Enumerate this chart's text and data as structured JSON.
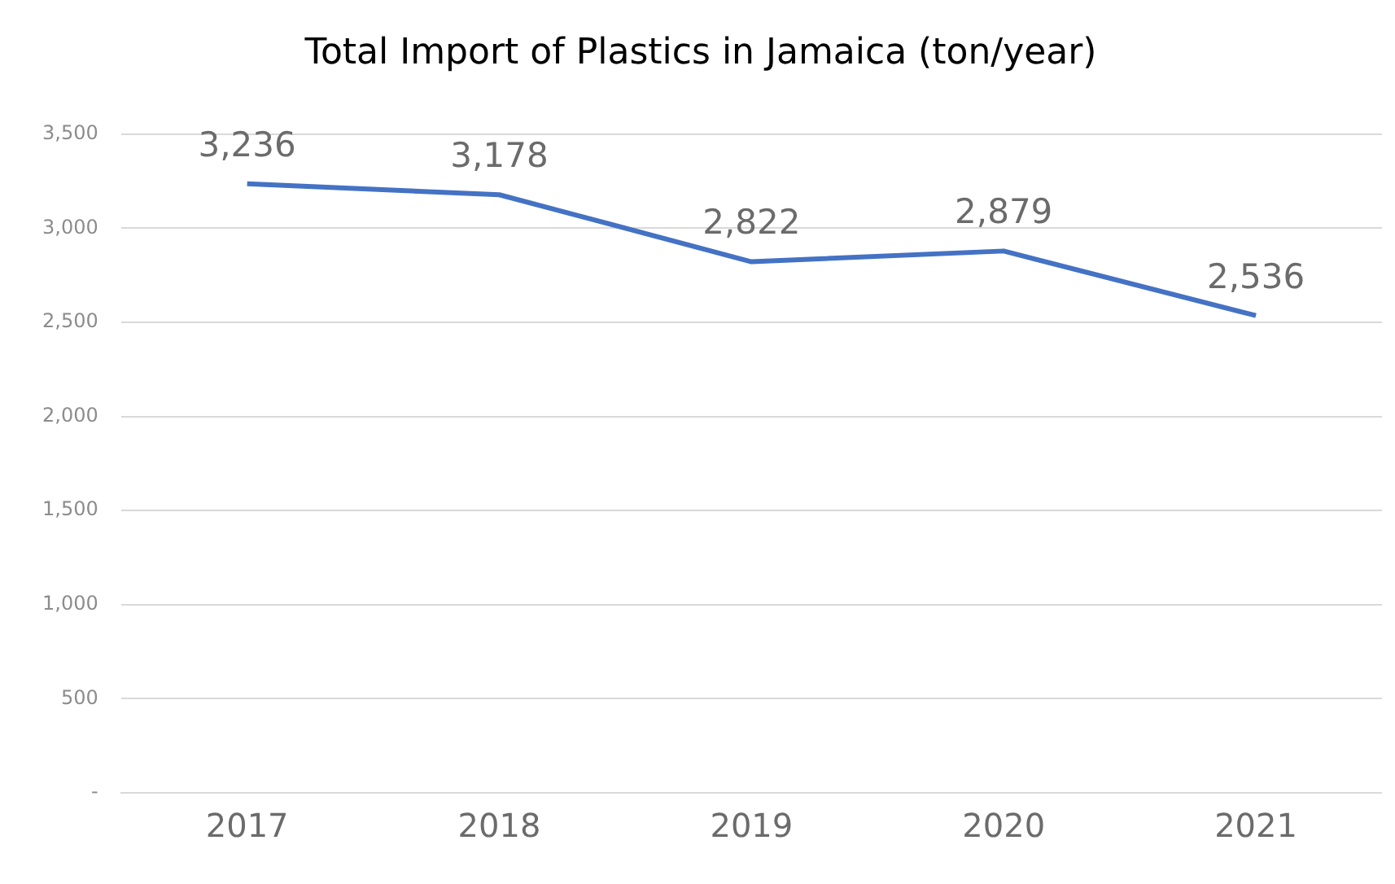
{
  "chart_data": {
    "type": "line",
    "title": "Total Import of Plastics in Jamaica (ton/year)",
    "categories": [
      "2017",
      "2018",
      "2019",
      "2020",
      "2021"
    ],
    "series": [
      {
        "color": "#4472c4",
        "values": [
          3236,
          3178,
          2822,
          2879,
          2536
        ],
        "value_labels": [
          "3,236",
          "3,178",
          "2,822",
          "2,879",
          "2,536"
        ]
      }
    ],
    "ylim": [
      0,
      3500
    ],
    "yticks": [
      {
        "value": 0,
        "label": "-"
      },
      500,
      {
        "value": 1000,
        "label": "1,000"
      },
      {
        "value": 1500,
        "label": "1,500"
      },
      {
        "value": 2000,
        "label": "2,000"
      },
      {
        "value": 2500,
        "label": "2,500"
      },
      {
        "value": 3000,
        "label": "3,000"
      },
      {
        "value": 3500,
        "label": "3,500"
      }
    ],
    "grid": "y",
    "legend": false,
    "marker": "none",
    "line_style": "solid"
  }
}
